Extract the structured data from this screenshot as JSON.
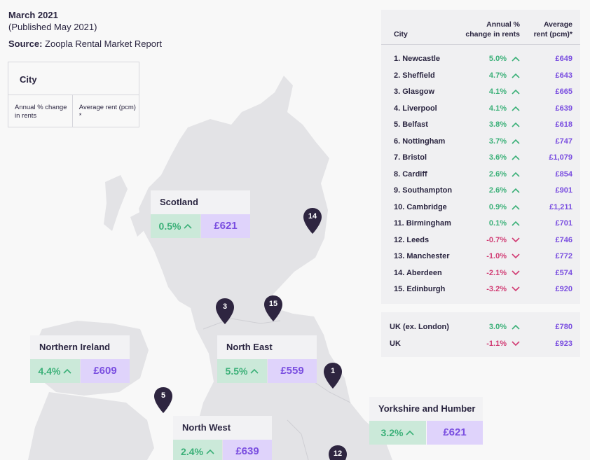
{
  "header": {
    "title": "March 2021",
    "subtitle": "(Published May 2021)",
    "source_label": "Source:",
    "source_value": "Zoopla Rental Market Report"
  },
  "legend_key": {
    "city": "City",
    "change_label": "Annual % change in rents",
    "rent_label": "Average rent (pcm) *"
  },
  "table": {
    "col_city": "City",
    "col_change": "Annual %\nchange in rents",
    "col_rent": "Average\nrent (pcm)*",
    "rows": [
      {
        "rank_city": "1. Newcastle",
        "change": "5.0%",
        "dir": "up",
        "rent": "£649"
      },
      {
        "rank_city": "2. Sheffield",
        "change": "4.7%",
        "dir": "up",
        "rent": "£643"
      },
      {
        "rank_city": "3. Glasgow",
        "change": "4.1%",
        "dir": "up",
        "rent": "£665"
      },
      {
        "rank_city": "4. Liverpool",
        "change": "4.1%",
        "dir": "up",
        "rent": "£639"
      },
      {
        "rank_city": "5. Belfast",
        "change": "3.8%",
        "dir": "up",
        "rent": "£618"
      },
      {
        "rank_city": "6. Nottingham",
        "change": "3.7%",
        "dir": "up",
        "rent": "£747"
      },
      {
        "rank_city": "7. Bristol",
        "change": "3.6%",
        "dir": "up",
        "rent": "£1,079"
      },
      {
        "rank_city": "8. Cardiff",
        "change": "2.6%",
        "dir": "up",
        "rent": "£854"
      },
      {
        "rank_city": "9. Southampton",
        "change": "2.6%",
        "dir": "up",
        "rent": "£901"
      },
      {
        "rank_city": "10. Cambridge",
        "change": "0.9%",
        "dir": "up",
        "rent": "£1,211"
      },
      {
        "rank_city": "11. Birmingham",
        "change": "0.1%",
        "dir": "up",
        "rent": "£701"
      },
      {
        "rank_city": "12. Leeds",
        "change": "-0.7%",
        "dir": "down",
        "rent": "£746"
      },
      {
        "rank_city": "13. Manchester",
        "change": "-1.0%",
        "dir": "down",
        "rent": "£772"
      },
      {
        "rank_city": "14. Aberdeen",
        "change": "-2.1%",
        "dir": "down",
        "rent": "£574"
      },
      {
        "rank_city": "15. Edinburgh",
        "change": "-3.2%",
        "dir": "down",
        "rent": "£920"
      }
    ],
    "summary": [
      {
        "rank_city": "UK (ex. London)",
        "change": "3.0%",
        "dir": "up",
        "rent": "£780"
      },
      {
        "rank_city": "UK",
        "change": "-1.1%",
        "dir": "down",
        "rent": "£923"
      }
    ]
  },
  "regions": [
    {
      "name": "Scotland",
      "change": "0.5%",
      "rent": "£621"
    },
    {
      "name": "Northern Ireland",
      "change": "4.4%",
      "rent": "£609"
    },
    {
      "name": "North East",
      "change": "5.5%",
      "rent": "£559"
    },
    {
      "name": "Yorkshire and Humber",
      "change": "3.2%",
      "rent": "£621"
    },
    {
      "name": "North West",
      "change": "2.4%",
      "rent": "£639"
    }
  ],
  "pins": [
    "14",
    "3",
    "15",
    "1",
    "5",
    "12"
  ],
  "colors": {
    "positive": "#3bb078",
    "negative": "#d13b73",
    "rent": "#7a4ee0",
    "pin": "#2e2540",
    "land": "#e3e3e6"
  },
  "icons": {
    "up": "chevron-up-icon",
    "down": "chevron-down-icon",
    "pin": "map-pin-icon"
  }
}
